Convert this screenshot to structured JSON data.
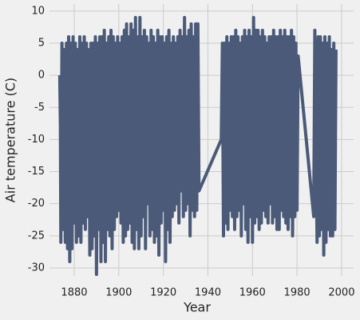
{
  "chart_data": {
    "type": "line",
    "xlabel": "Year",
    "ylabel": "Air temperature (C)",
    "xlim": [
      1868.9,
      2005.4
    ],
    "ylim": [
      -31.25,
      11.1
    ],
    "xticks": [
      1880,
      1900,
      1920,
      1940,
      1960,
      1980,
      2000
    ],
    "yticks": [
      -30,
      -25,
      -20,
      -15,
      -10,
      -5,
      0,
      5,
      10
    ],
    "grid": true,
    "series": [
      {
        "color": "#4a5a78",
        "x": [
          1873.5,
          1873.8,
          1874,
          1874.5,
          1875,
          1875.5,
          1876,
          1876.5,
          1877,
          1877.5,
          1878,
          1878.5,
          1879,
          1879.5,
          1880,
          1880.5,
          1881,
          1881.5,
          1882,
          1882.5,
          1883,
          1883.5,
          1884,
          1884.5,
          1885,
          1885.5,
          1886,
          1886.5,
          1887,
          1887.5,
          1888,
          1888.5,
          1889,
          1889.5,
          1890,
          1890.5,
          1891,
          1891.5,
          1892,
          1892.5,
          1893,
          1893.5,
          1894,
          1894.5,
          1895,
          1895.5,
          1896,
          1896.5,
          1897,
          1897.5,
          1898,
          1898.5,
          1899,
          1899.5,
          1900,
          1900.5,
          1901,
          1901.5,
          1902,
          1902.5,
          1903,
          1903.5,
          1904,
          1904.5,
          1905,
          1905.5,
          1906,
          1906.5,
          1907,
          1907.5,
          1908,
          1908.5,
          1909,
          1909.5,
          1910,
          1910.5,
          1911,
          1911.5,
          1912,
          1912.5,
          1913,
          1913.5,
          1914,
          1914.5,
          1915,
          1915.5,
          1916,
          1916.5,
          1917,
          1917.5,
          1918,
          1918.5,
          1919,
          1919.5,
          1920,
          1920.5,
          1921,
          1921.5,
          1922,
          1922.5,
          1923,
          1923.5,
          1924,
          1924.5,
          1925,
          1925.5,
          1926,
          1926.5,
          1927,
          1927.5,
          1928,
          1928.5,
          1929,
          1929.5,
          1930,
          1930.5,
          1931,
          1931.5,
          1932,
          1932.5,
          1933,
          1933.5,
          1934,
          1934.5,
          1935,
          1935.5,
          1936,
          1946,
          1946.5,
          1947,
          1947.5,
          1948,
          1948.5,
          1949,
          1949.5,
          1950,
          1950.5,
          1951,
          1951.5,
          1952,
          1952.5,
          1953,
          1953.5,
          1954,
          1954.5,
          1955,
          1955.5,
          1956,
          1956.5,
          1957,
          1957.5,
          1958,
          1958.5,
          1959,
          1959.5,
          1960,
          1960.5,
          1961,
          1961.5,
          1962,
          1962.5,
          1963,
          1963.5,
          1964,
          1964.5,
          1965,
          1965.5,
          1966,
          1966.5,
          1967,
          1967.5,
          1968,
          1968.5,
          1969,
          1969.5,
          1970,
          1970.5,
          1971,
          1971.5,
          1972,
          1972.5,
          1973,
          1973.5,
          1974,
          1974.5,
          1975,
          1975.5,
          1976,
          1976.5,
          1977,
          1977.5,
          1978,
          1978.5,
          1979,
          1979.5,
          1980,
          1980.5,
          1987.5,
          1988,
          1989,
          1989.5,
          1990,
          1990.5,
          1991,
          1991.5,
          1992,
          1992.5,
          1993,
          1993.5,
          1994,
          1994.5,
          1995,
          1995.5,
          1996,
          1996.5,
          1997,
          1997.5
        ],
        "values": [
          0,
          -8,
          -26,
          5,
          -24,
          4,
          -26,
          5,
          -27,
          6,
          -29,
          5,
          -27,
          6,
          -23,
          5,
          -26,
          4,
          -25,
          6,
          -26,
          5,
          -23,
          6,
          -24,
          5,
          -22,
          4,
          -28,
          5,
          -27,
          5,
          -25,
          6,
          -31,
          5,
          -24,
          6,
          -29,
          6,
          -26,
          7,
          -29,
          5,
          -24,
          6,
          -25,
          7,
          -27,
          6,
          -24,
          5,
          -22,
          6,
          -21,
          5,
          -23,
          6,
          -26,
          7,
          -25,
          8,
          -24,
          6,
          -23,
          8,
          -26,
          7,
          -27,
          9,
          -24,
          6,
          -27,
          9,
          -25,
          6,
          -22,
          7,
          -27,
          6,
          -20,
          5,
          -25,
          7,
          -24,
          6,
          -26,
          5,
          -25,
          7,
          -28,
          6,
          -23,
          6,
          -21,
          5,
          -29,
          6,
          -24,
          7,
          -26,
          5,
          -22,
          6,
          -21,
          5,
          -20,
          6,
          -23,
          7,
          -18,
          6,
          -22,
          9,
          -21,
          6,
          -20,
          7,
          -25,
          8,
          -21,
          6,
          -22,
          8,
          -21,
          8,
          -18,
          -10,
          5,
          -25,
          5,
          -23,
          6,
          -24,
          5,
          -21,
          6,
          -22,
          6,
          -24,
          7,
          -22,
          6,
          -21,
          5,
          -25,
          6,
          -20,
          7,
          -24,
          6,
          -26,
          7,
          -22,
          6,
          -26,
          9,
          -23,
          7,
          -22,
          7,
          -24,
          6,
          -23,
          7,
          -21,
          6,
          -22,
          5,
          -23,
          6,
          -20,
          6,
          -23,
          7,
          -22,
          6,
          -24,
          6,
          -24,
          7,
          -21,
          6,
          -22,
          7,
          -23,
          6,
          -24,
          6,
          -22,
          7,
          -25,
          6,
          -22,
          5,
          -21,
          3,
          -22,
          7,
          -26,
          6,
          -25,
          6,
          -24,
          5,
          -28,
          6,
          -26,
          5,
          -24,
          6,
          -25,
          4,
          -25,
          5,
          -24,
          4
        ]
      }
    ]
  }
}
